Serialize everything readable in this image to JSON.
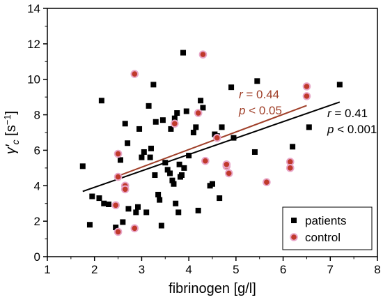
{
  "chart_data": {
    "type": "scatter",
    "xlabel": "fibrinogen [g/l]",
    "ylabel": "γ′c [s⁻¹]",
    "xlim": [
      1,
      8
    ],
    "ylim": [
      0,
      14
    ],
    "xticks": [
      "1",
      "2",
      "3",
      "4",
      "5",
      "6",
      "7",
      "8"
    ],
    "yticks": [
      "0",
      "2",
      "4",
      "6",
      "8",
      "10",
      "12",
      "14"
    ],
    "grid": false,
    "legend_position": "bottom-right",
    "series": [
      {
        "name": "patients",
        "marker": "square",
        "color": "#000000",
        "points": [
          [
            1.75,
            5.1
          ],
          [
            1.9,
            1.8
          ],
          [
            1.95,
            3.4
          ],
          [
            2.1,
            3.3
          ],
          [
            2.15,
            8.8
          ],
          [
            2.2,
            3.0
          ],
          [
            2.3,
            2.95
          ],
          [
            2.45,
            1.65
          ],
          [
            2.5,
            5.8
          ],
          [
            2.55,
            5.45
          ],
          [
            2.6,
            1.95
          ],
          [
            2.65,
            7.5
          ],
          [
            2.7,
            6.4
          ],
          [
            2.72,
            2.7
          ],
          [
            2.85,
            10.3
          ],
          [
            2.88,
            2.5
          ],
          [
            2.92,
            2.8
          ],
          [
            2.95,
            7.2
          ],
          [
            3.0,
            5.6
          ],
          [
            3.05,
            5.9
          ],
          [
            3.1,
            2.5
          ],
          [
            3.15,
            8.5
          ],
          [
            3.18,
            5.6
          ],
          [
            3.2,
            6.1
          ],
          [
            3.25,
            9.7
          ],
          [
            3.28,
            4.6
          ],
          [
            3.3,
            7.6
          ],
          [
            3.35,
            3.5
          ],
          [
            3.38,
            3.2
          ],
          [
            3.42,
            1.75
          ],
          [
            3.45,
            7.7
          ],
          [
            3.5,
            5.3
          ],
          [
            3.55,
            4.9
          ],
          [
            3.6,
            4.7
          ],
          [
            3.62,
            7.2
          ],
          [
            3.65,
            4.3
          ],
          [
            3.68,
            4.1
          ],
          [
            3.7,
            7.8
          ],
          [
            3.72,
            3.0
          ],
          [
            3.75,
            8.1
          ],
          [
            3.78,
            2.5
          ],
          [
            3.8,
            5.2
          ],
          [
            3.82,
            4.5
          ],
          [
            3.85,
            4.6
          ],
          [
            3.88,
            11.5
          ],
          [
            3.9,
            5.0
          ],
          [
            3.95,
            8.2
          ],
          [
            4.0,
            5.7
          ],
          [
            4.1,
            7.0
          ],
          [
            4.15,
            7.3
          ],
          [
            4.2,
            2.6
          ],
          [
            4.25,
            8.8
          ],
          [
            4.3,
            8.4
          ],
          [
            4.45,
            4.0
          ],
          [
            4.5,
            4.1
          ],
          [
            4.55,
            6.9
          ],
          [
            4.6,
            6.8
          ],
          [
            4.65,
            3.3
          ],
          [
            4.7,
            7.3
          ],
          [
            4.8,
            5.2
          ],
          [
            4.9,
            9.55
          ],
          [
            4.95,
            6.7
          ],
          [
            5.4,
            5.9
          ],
          [
            5.45,
            9.9
          ],
          [
            6.2,
            6.2
          ],
          [
            6.55,
            7.3
          ],
          [
            7.2,
            9.7
          ]
        ]
      },
      {
        "name": "control",
        "marker": "circle",
        "color": "#c0392b",
        "points": [
          [
            2.45,
            2.9
          ],
          [
            2.5,
            5.8
          ],
          [
            2.5,
            4.5
          ],
          [
            2.5,
            1.4
          ],
          [
            2.65,
            4.0
          ],
          [
            2.65,
            3.8
          ],
          [
            2.85,
            10.3
          ],
          [
            2.85,
            1.6
          ],
          [
            3.7,
            7.5
          ],
          [
            4.2,
            8.1
          ],
          [
            4.3,
            11.4
          ],
          [
            4.35,
            5.4
          ],
          [
            4.6,
            6.7
          ],
          [
            4.8,
            5.1
          ],
          [
            4.8,
            5.2
          ],
          [
            4.85,
            4.7
          ],
          [
            5.65,
            4.2
          ],
          [
            6.15,
            5.35
          ],
          [
            6.15,
            5.0
          ],
          [
            6.5,
            9.6
          ],
          [
            6.5,
            9.05
          ]
        ]
      }
    ],
    "fits": [
      {
        "series": "patients",
        "color": "#000000",
        "x": [
          1.75,
          7.2
        ],
        "y": [
          3.68,
          8.72
        ]
      },
      {
        "series": "control",
        "color": "#a0402a",
        "x": [
          2.45,
          6.5
        ],
        "y": [
          4.5,
          8.52
        ]
      }
    ],
    "annotations": [
      {
        "r_label": "r",
        "r_value": "= 0.44",
        "p_label": "p",
        "p_value": "< 0.05",
        "color": "#a0402a"
      },
      {
        "r_label": "r",
        "r_value": "= 0.41",
        "p_label": "p",
        "p_value": "< 0.001",
        "color": "#000000"
      }
    ],
    "legend": [
      {
        "label": "patients",
        "marker": "square",
        "color": "#000000"
      },
      {
        "label": "control",
        "marker": "circle",
        "color": "#c0392b"
      }
    ]
  }
}
